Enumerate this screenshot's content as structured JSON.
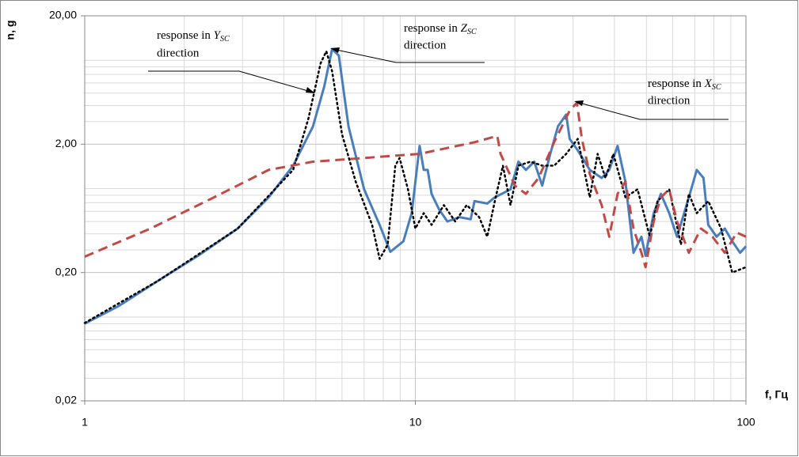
{
  "chart_data": {
    "type": "line",
    "xlog": true,
    "ylog": true,
    "grid": true,
    "xlabel": "f, Гц",
    "ylabel": "n, g",
    "xlim": [
      1,
      100
    ],
    "xticks": [
      1,
      10,
      100
    ],
    "ylim": [
      0.02,
      20
    ],
    "yticks": [
      {
        "value": 0.02,
        "label": "0,02"
      },
      {
        "value": 0.2,
        "label": "0,20"
      },
      {
        "value": 2,
        "label": "2,00"
      },
      {
        "value": 20,
        "label": "20,00"
      }
    ],
    "annotations": [
      {
        "text": "response in",
        "axis": "Y",
        "sub": "SC",
        "line2": "direction"
      },
      {
        "text": "response in",
        "axis": "Z",
        "sub": "SC",
        "line2": "direction"
      },
      {
        "text": "response in",
        "axis": "X",
        "sub": "SC",
        "line2": "direction"
      }
    ],
    "series": [
      {
        "color": "#4a7ebb",
        "style": "solid",
        "x": [
          1,
          1.27,
          1.67,
          2.2,
          2.9,
          3.6,
          4.27,
          4.9,
          5.3,
          5.6,
          5.87,
          6.28,
          7.0,
          7.8,
          8.4,
          9.2,
          9.75,
          10.3,
          10.6,
          10.9,
          11.2,
          11.8,
          12.5,
          13.6,
          14.7,
          15.1,
          16.5,
          17.4,
          19.4,
          20.5,
          21.6,
          22.9,
          24.2,
          25.6,
          27.0,
          28.6,
          29.3,
          31.0,
          33.7,
          36.6,
          38.6,
          40.9,
          43.2,
          45.7,
          48.3,
          49.7,
          52.6,
          55.3,
          58.6,
          61.9,
          67.2,
          71.0,
          74.4,
          76.9,
          81.5,
          86.3,
          90.9,
          96.0,
          100
        ],
        "values": [
          0.08,
          0.11,
          0.173,
          0.27,
          0.44,
          0.77,
          1.36,
          2.75,
          5.6,
          11,
          9.8,
          2.75,
          0.89,
          0.47,
          0.29,
          0.35,
          0.58,
          1.94,
          1.26,
          1.26,
          0.82,
          0.62,
          0.5,
          0.54,
          0.52,
          0.72,
          0.69,
          0.77,
          0.89,
          1.46,
          1.26,
          1.46,
          0.95,
          1.68,
          2.75,
          3.4,
          2.2,
          1.79,
          1.26,
          1.09,
          1.26,
          1.94,
          1.02,
          0.285,
          0.38,
          0.27,
          0.58,
          0.82,
          0.58,
          0.38,
          0.77,
          1.26,
          1.09,
          0.47,
          0.38,
          0.44,
          0.35,
          0.285,
          0.32
        ]
      },
      {
        "color": "#000000",
        "style": "dotted",
        "x": [
          1,
          1.67,
          2.9,
          4.27,
          4.75,
          5.17,
          5.38,
          5.6,
          6.0,
          6.6,
          7.4,
          7.8,
          8.25,
          8.7,
          8.96,
          9.5,
          10.0,
          10.6,
          11.2,
          12.2,
          13.2,
          14.3,
          15.6,
          16.5,
          17.4,
          18.4,
          19.4,
          20.5,
          22.3,
          24.2,
          26.3,
          28.6,
          31.0,
          33.7,
          35.6,
          37.6,
          39.7,
          43.2,
          47.0,
          51.2,
          54.0,
          58.6,
          63.6,
          67.2,
          71.0,
          76.9,
          84.1,
          90.9,
          100
        ],
        "values": [
          0.081,
          0.173,
          0.44,
          1.26,
          3.17,
          8.55,
          10.6,
          7.4,
          2.39,
          1.02,
          0.47,
          0.255,
          0.33,
          1.36,
          1.56,
          0.89,
          0.44,
          0.58,
          0.47,
          0.67,
          0.5,
          0.67,
          0.54,
          0.38,
          0.72,
          1.36,
          0.67,
          1.36,
          1.46,
          1.36,
          1.36,
          1.68,
          2.2,
          0.77,
          1.68,
          1.09,
          1.68,
          0.77,
          0.89,
          0.38,
          0.72,
          0.89,
          0.33,
          0.82,
          0.58,
          0.72,
          0.44,
          0.2,
          0.22
        ]
      },
      {
        "color": "#be4b48",
        "style": "dashed",
        "x": [
          1,
          1.58,
          2.46,
          3.6,
          4.9,
          7.0,
          10.3,
          15.1,
          17.7,
          18.1,
          20.0,
          21.6,
          23.6,
          26.3,
          29.3,
          30.8,
          31.9,
          33.7,
          36.6,
          38.6,
          40.9,
          43.2,
          45.7,
          48.3,
          49.7,
          52.6,
          55.3,
          58.6,
          61.9,
          67.2,
          73.1,
          79.2,
          86.3,
          93.8,
          100
        ],
        "values": [
          0.266,
          0.44,
          0.77,
          1.26,
          1.46,
          1.56,
          1.68,
          2.07,
          2.32,
          1.68,
          0.95,
          0.82,
          1.09,
          2.07,
          3.65,
          4.2,
          2.2,
          1.17,
          0.67,
          0.38,
          0.82,
          1.02,
          0.44,
          0.285,
          0.22,
          0.5,
          0.77,
          0.89,
          0.5,
          0.285,
          0.44,
          0.38,
          0.285,
          0.41,
          0.38
        ]
      }
    ]
  }
}
